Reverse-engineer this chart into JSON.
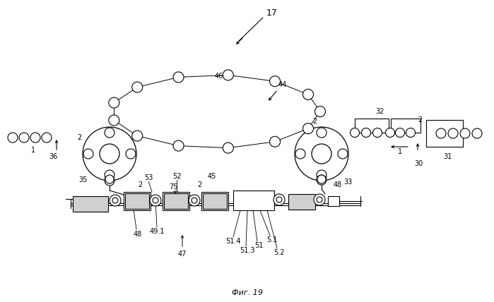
{
  "bg_color": "#ffffff",
  "fig_caption": "Фиг. 19",
  "label_17": "17"
}
